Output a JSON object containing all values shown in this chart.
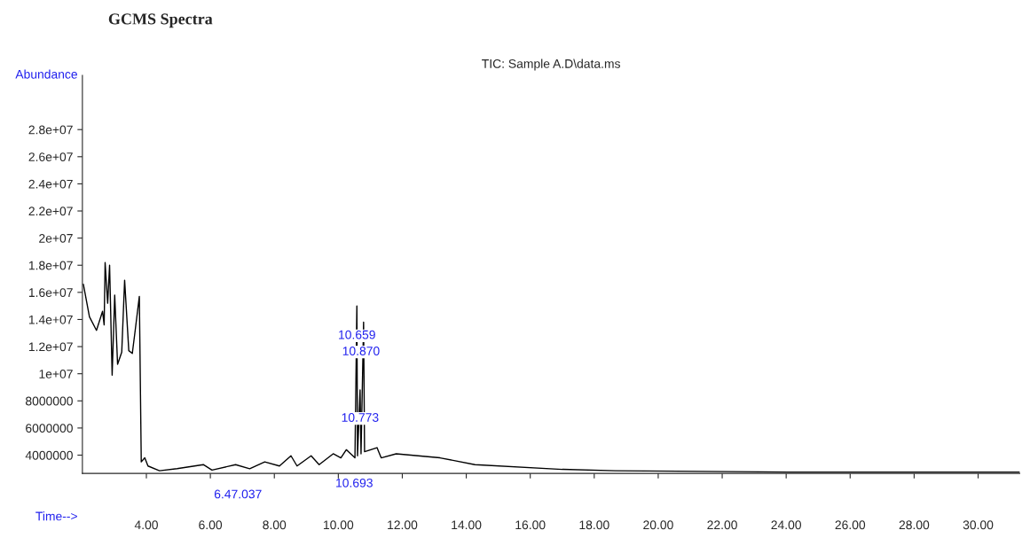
{
  "chart_data": {
    "type": "line",
    "title": "GCMS Spectra",
    "subtitle": "TIC: Sample A.D\\data.ms",
    "xlabel": "Time-->",
    "ylabel": "Abundance",
    "x": [
      2.03,
      2.22,
      2.44,
      2.63,
      2.68,
      2.71,
      2.79,
      2.85,
      2.93,
      3.01,
      3.1,
      3.23,
      3.32,
      3.45,
      3.56,
      3.64,
      3.78,
      3.84,
      3.95,
      4.05,
      4.41,
      4.96,
      5.78,
      6.05,
      6.79,
      7.23,
      7.7,
      8.16,
      8.52,
      8.71,
      9.15,
      9.4,
      9.84,
      10.08,
      10.25,
      10.52,
      10.58,
      10.6,
      10.68,
      10.71,
      10.79,
      10.82,
      11.21,
      11.34,
      11.81,
      13.18,
      14.27,
      17.0,
      18.66,
      24.1,
      31.3
    ],
    "series": [
      {
        "color": "#000000",
        "values": [
          16600000,
          14200000,
          13200000,
          14600000,
          13600000,
          18200000,
          15200000,
          18000000,
          9900000,
          15800000,
          10700000,
          11600000,
          16900000,
          11700000,
          11500000,
          13000000,
          15700000,
          3500000,
          3800000,
          3200000,
          2850000,
          3000000,
          3300000,
          2900000,
          3300000,
          3000000,
          3500000,
          3200000,
          3950000,
          3200000,
          3950000,
          3300000,
          4100000,
          3800000,
          4400000,
          3800000,
          15000000,
          3950000,
          8800000,
          4100000,
          13800000,
          4250000,
          4550000,
          3800000,
          4100000,
          3800000,
          3300000,
          2950000,
          2850000,
          2750000,
          2750000
        ]
      }
    ],
    "annotations": [
      {
        "text": "10.659",
        "x": 10.58,
        "y": 12800000
      },
      {
        "text": "10.870",
        "x": 10.71,
        "y": 11600000
      },
      {
        "text": "10.773",
        "x": 10.68,
        "y": 6700000
      },
      "10.693",
      "6.47.037"
    ],
    "xlim": [
      2.0,
      31.3
    ],
    "ylim": [
      2650000,
      32000000
    ],
    "xticks": [
      {
        "value": 4,
        "label": "4.00"
      },
      {
        "value": 6,
        "label": "6.00"
      },
      {
        "value": 8,
        "label": "8.00"
      },
      {
        "value": 10,
        "label": "10.00"
      },
      {
        "value": 12,
        "label": "12.00"
      },
      {
        "value": 14,
        "label": "14.00"
      },
      {
        "value": 16,
        "label": "16.00"
      },
      {
        "value": 18,
        "label": "18.00"
      },
      {
        "value": 20,
        "label": "20.00"
      },
      {
        "value": 22,
        "label": "22.00"
      },
      {
        "value": 24,
        "label": "24.00"
      },
      {
        "value": 26,
        "label": "26.00"
      },
      {
        "value": 28,
        "label": "28.00"
      },
      {
        "value": 30,
        "label": "30.00"
      }
    ],
    "yticks": [
      4000000,
      6000000,
      8000000,
      {
        "value": 10000000,
        "label": "1e+07"
      },
      {
        "value": 12000000,
        "label": "1.2e+07"
      },
      {
        "value": 14000000,
        "label": "1.4e+07"
      },
      {
        "value": 16000000,
        "label": "1.6e+07"
      },
      {
        "value": 18000000,
        "label": "1.8e+07"
      },
      {
        "value": 20000000,
        "label": "2e+07"
      },
      {
        "value": 22000000,
        "label": "2.2e+07"
      },
      {
        "value": 24000000,
        "label": "2.4e+07"
      },
      {
        "value": 26000000,
        "label": "2.6e+07"
      },
      {
        "value": 28000000,
        "label": "2.8e+07"
      }
    ],
    "grid": false,
    "legend": false,
    "marker": "none",
    "line_style": "solid"
  }
}
